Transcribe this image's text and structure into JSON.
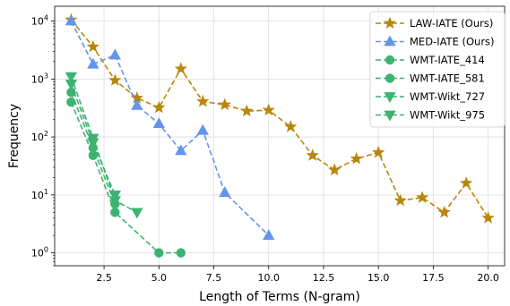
{
  "chart_data": {
    "type": "line",
    "xlabel": "Length of Terms (N-gram)",
    "ylabel": "Frequency",
    "yscale": "log",
    "xlim": [
      0.25,
      20.75
    ],
    "ylim": [
      0.6,
      18000
    ],
    "xticks": [
      2.5,
      5.0,
      7.5,
      10.0,
      12.5,
      15.0,
      17.5,
      20.0
    ],
    "xtick_labels": [
      "2.5",
      "5.0",
      "7.5",
      "10.0",
      "12.5",
      "15.0",
      "17.5",
      "20.0"
    ],
    "yticks": [
      1,
      10,
      100,
      1000,
      10000
    ],
    "ytick_labels": [
      {
        "base": "10",
        "exp": "0"
      },
      {
        "base": "10",
        "exp": "1"
      },
      {
        "base": "10",
        "exp": "2"
      },
      {
        "base": "10",
        "exp": "3"
      },
      {
        "base": "10",
        "exp": "4"
      }
    ],
    "grid": true,
    "legend_position": "top-right",
    "series": [
      {
        "name": "LAW-IATE (Ours)",
        "color": "#b8860b",
        "marker": "star",
        "x": [
          1,
          2,
          3,
          4,
          5,
          6,
          7,
          8,
          9,
          10,
          11,
          12,
          13,
          14,
          15,
          16,
          17,
          18,
          19,
          20
        ],
        "y": [
          10500,
          3600,
          950,
          470,
          320,
          1500,
          410,
          360,
          280,
          290,
          150,
          48,
          27,
          42,
          54,
          8,
          9,
          5,
          16,
          4
        ]
      },
      {
        "name": "MED-IATE (Ours)",
        "color": "#6495ed",
        "marker": "triangle-up",
        "x": [
          1,
          2,
          3,
          4,
          5,
          6,
          7,
          8,
          10
        ],
        "y": [
          10000,
          1800,
          2600,
          350,
          170,
          58,
          130,
          11,
          2
        ]
      },
      {
        "name": "WMT-IATE_414",
        "color": "#3cb371",
        "marker": "circle",
        "x": [
          1,
          2,
          3,
          5,
          6
        ],
        "y": [
          400,
          48,
          5,
          1,
          1
        ]
      },
      {
        "name": "WMT-IATE_581",
        "color": "#3cb371",
        "marker": "circle",
        "x": [
          1,
          2,
          3
        ],
        "y": [
          590,
          65,
          7
        ]
      },
      {
        "name": "WMT-Wikt_727",
        "color": "#3cb371",
        "marker": "triangle-down",
        "x": [
          1,
          2,
          3
        ],
        "y": [
          820,
          80,
          10
        ]
      },
      {
        "name": "WMT-Wikt_975",
        "color": "#3cb371",
        "marker": "triangle-down",
        "x": [
          1,
          2,
          3,
          4
        ],
        "y": [
          1100,
          95,
          8,
          5
        ]
      }
    ]
  }
}
